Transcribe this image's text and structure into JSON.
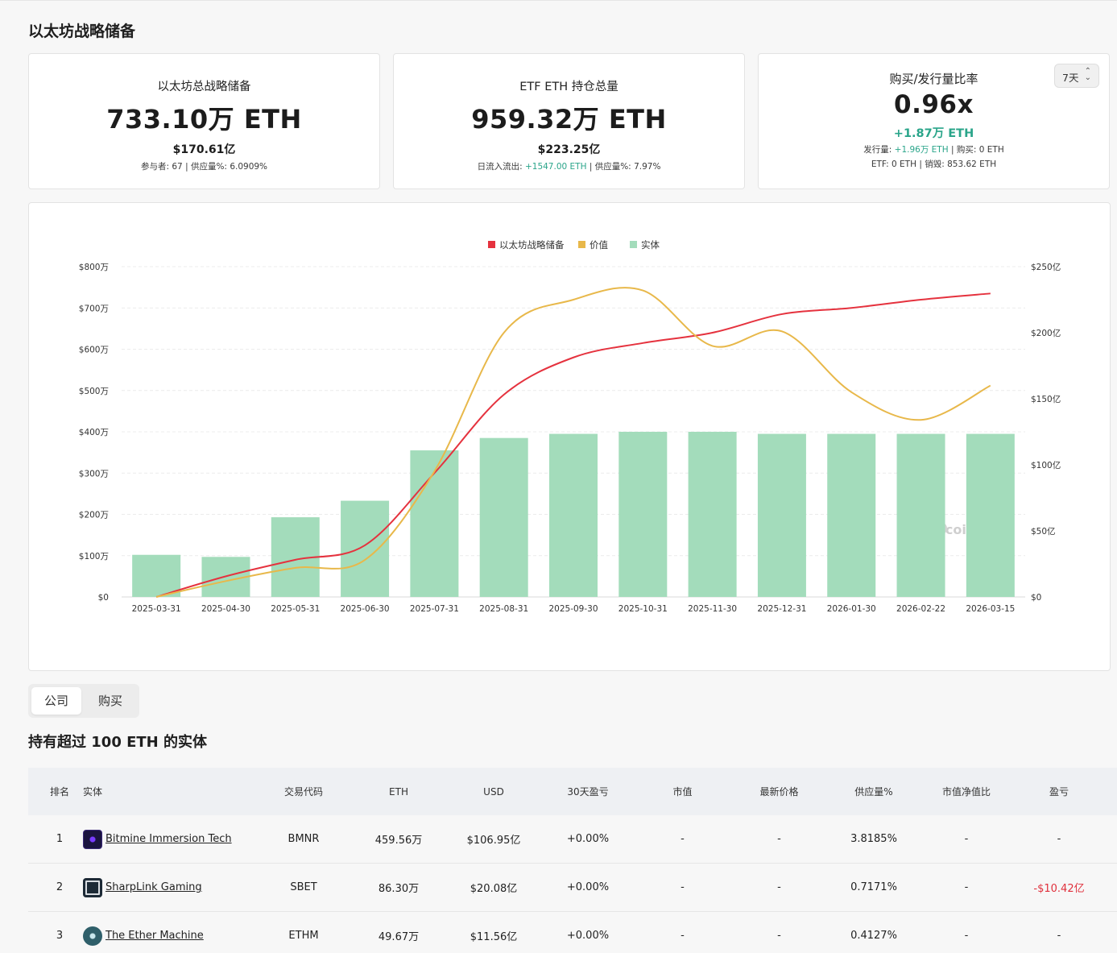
{
  "page_title": "以太坊战略储备",
  "cards": {
    "reserve": {
      "title": "以太坊总战略储备",
      "value": "733.10万 ETH",
      "usd": "$170.61亿",
      "participants_label": "参与者:",
      "participants": "67",
      "sep": "|",
      "supply_label": "供应量%:",
      "supply": "6.0909%"
    },
    "etf": {
      "title": "ETF ETH 持仓总量",
      "value": "959.32万 ETH",
      "usd": "$223.25亿",
      "flow_label": "日流入流出:",
      "flow": "+1547.00 ETH",
      "sep": "|",
      "supply_label": "供应量%:",
      "supply": "7.97%"
    },
    "ratio": {
      "title": "购买/发行量比率",
      "value": "0.96x",
      "delta": "+1.87万 ETH",
      "issuance_label": "发行量:",
      "issuance": "+1.96万 ETH",
      "sep": "|",
      "buy_label": "购买:",
      "buy": "0 ETH",
      "etf_label": "ETF:",
      "etf": "0 ETH",
      "burn_label": "销毁:",
      "burn": "853.62 ETH",
      "period": "7天",
      "period_icon": "chevron-updown-icon"
    }
  },
  "chart_data": {
    "type": "bar",
    "legend": [
      "以太坊战略储备",
      "价值",
      "实体"
    ],
    "legend_position": "top-center",
    "categories": [
      "2025-03-31",
      "2025-04-30",
      "2025-05-31",
      "2025-06-30",
      "2025-07-31",
      "2025-08-31",
      "2025-09-30",
      "2025-10-31",
      "2025-11-30",
      "2025-12-31",
      "2026-01-30",
      "2026-02-22",
      "2026-03-15"
    ],
    "left_axis_ticks": [
      "$0",
      "$100万",
      "$200万",
      "$300万",
      "$400万",
      "$500万",
      "$600万",
      "$700万",
      "$800万"
    ],
    "right_axis_ticks": [
      "$0",
      "$50亿",
      "$100亿",
      "$150亿",
      "$200亿",
      "$250亿"
    ],
    "left_ylim": [
      0,
      800
    ],
    "right_ylim": [
      0,
      250
    ],
    "grid": true,
    "watermark": "coinglass",
    "series": [
      {
        "name": "实体",
        "kind": "bar",
        "axis": "left",
        "color": "#a3dcbb",
        "values": [
          102,
          97,
          193,
          233,
          355,
          385,
          395,
          400,
          400,
          395,
          395,
          395,
          395
        ]
      },
      {
        "name": "以太坊战略储备",
        "kind": "line",
        "axis": "left",
        "color": "#e5323e",
        "values": [
          0,
          50,
          90,
          125,
          300,
          490,
          580,
          615,
          640,
          685,
          700,
          720,
          735
        ]
      },
      {
        "name": "价值",
        "kind": "line",
        "axis": "right",
        "color": "#e8b84a",
        "values": [
          0,
          12,
          22,
          28,
          95,
          200,
          225,
          232,
          190,
          201,
          155,
          134,
          160
        ]
      }
    ]
  },
  "tabs": [
    "公司",
    "购买"
  ],
  "section_title": "持有超过 100 ETH 的实体",
  "table": {
    "headers": [
      "排名",
      "实体",
      "交易代码",
      "ETH",
      "USD",
      "30天盈亏",
      "市值",
      "最新价格",
      "供应量%",
      "市值净值比",
      "盈亏"
    ],
    "rows": [
      {
        "rank": "1",
        "entity": "Bitmine Immersion Tech",
        "icon": "bitmine-logo-icon",
        "ticker": "BMNR",
        "eth": "459.56万",
        "usd": "$106.95亿",
        "pnl30": "+0.00%",
        "mcap": "-",
        "price": "-",
        "supply": "3.8185%",
        "mnav": "-",
        "pnl": "-",
        "pnl_color": "#222222"
      },
      {
        "rank": "2",
        "entity": "SharpLink Gaming",
        "icon": "sharplink-logo-icon",
        "ticker": "SBET",
        "eth": "86.30万",
        "usd": "$20.08亿",
        "pnl30": "+0.00%",
        "mcap": "-",
        "price": "-",
        "supply": "0.7171%",
        "mnav": "-",
        "pnl": "-$10.42亿",
        "pnl_color": "#e0303c"
      },
      {
        "rank": "3",
        "entity": "The Ether Machine",
        "icon": "ether-machine-logo-icon",
        "ticker": "ETHM",
        "eth": "49.67万",
        "usd": "$11.56亿",
        "pnl30": "+0.00%",
        "mcap": "-",
        "price": "-",
        "supply": "0.4127%",
        "mnav": "-",
        "pnl": "-",
        "pnl_color": "#222222"
      }
    ]
  }
}
